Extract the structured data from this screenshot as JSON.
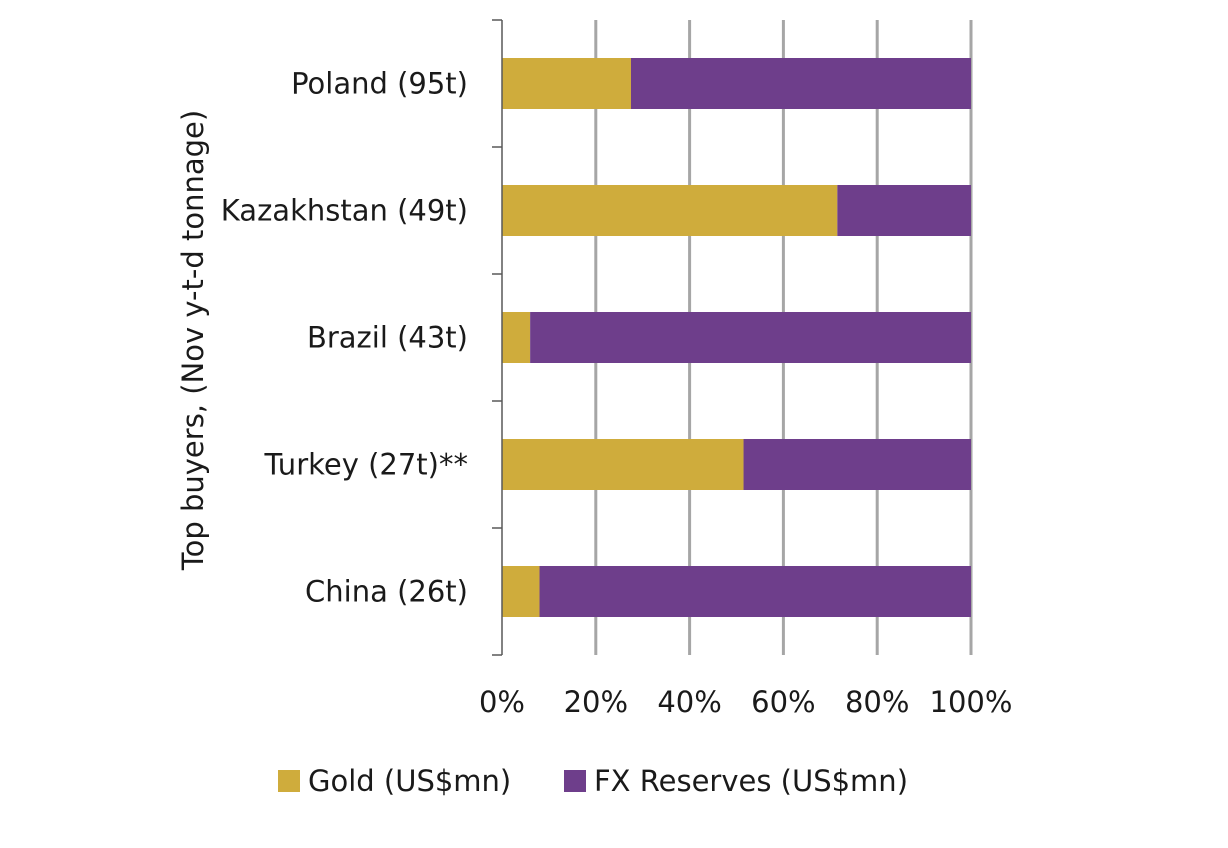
{
  "chart_data": {
    "type": "bar",
    "orientation": "horizontal",
    "stacked": true,
    "ylabel": "Top buyers, (Nov y-t-d tonnage)",
    "xlabel": "",
    "xlim": [
      0,
      100
    ],
    "x_ticks": [
      "0%",
      "20%",
      "40%",
      "60%",
      "80%",
      "100%"
    ],
    "x_tick_values": [
      0,
      20,
      40,
      60,
      80,
      100
    ],
    "grid": true,
    "legend_position": "bottom",
    "categories": [
      "Poland (95t)",
      "Kazakhstan (49t)",
      "Brazil (43t)",
      "Turkey (27t)**",
      "China (26t)"
    ],
    "series": [
      {
        "name": "Gold (US$mn)",
        "color": "#CFAC3C",
        "values": [
          27.5,
          71.5,
          6,
          51.5,
          8
        ]
      },
      {
        "name": "FX Reserves (US$mn)",
        "color": "#6E3E8B",
        "values": [
          72.5,
          28.5,
          94,
          48.5,
          92
        ]
      }
    ]
  }
}
